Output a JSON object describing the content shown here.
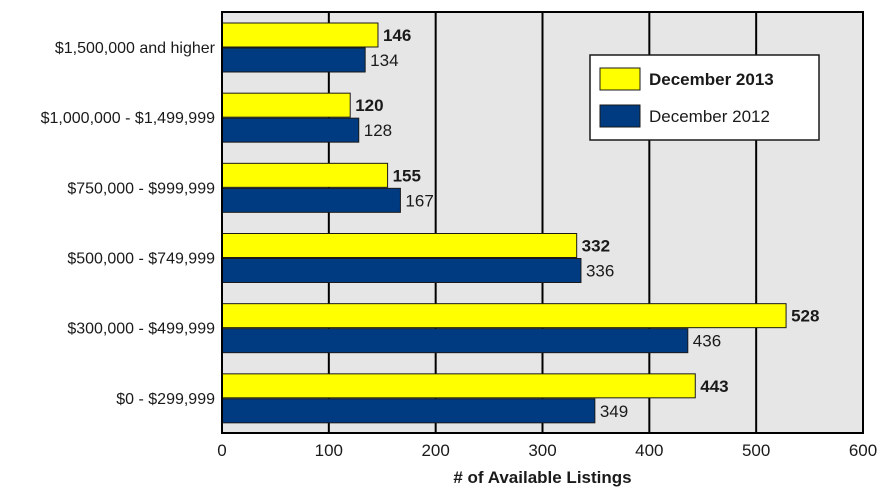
{
  "chart_data": {
    "type": "bar",
    "orientation": "horizontal",
    "categories": [
      "$1,500,000 and higher",
      "$1,000,000 - $1,499,999",
      "$750,000 - $999,999",
      "$500,000 - $749,999",
      "$300,000 - $499,999",
      "$0 - $299,999"
    ],
    "series": [
      {
        "name": "December 2013",
        "values": [
          146,
          120,
          155,
          332,
          528,
          443
        ],
        "color": "#ffff00",
        "label_bold": true
      },
      {
        "name": "December 2012",
        "values": [
          134,
          128,
          167,
          336,
          436,
          349
        ],
        "color": "#003a80",
        "label_bold": false
      }
    ],
    "value_labels": [
      [
        "146",
        "120",
        "155",
        "332",
        "528",
        "443"
      ],
      [
        "134",
        "128",
        "167",
        "336",
        "436",
        "349"
      ]
    ],
    "xlabel": "# of Available Listings",
    "xlim": [
      0,
      600
    ],
    "xticks": [
      "0",
      "100",
      "200",
      "300",
      "400",
      "500",
      "600"
    ],
    "grid": true,
    "plot_background": "#e6e6e6",
    "legend": {
      "position": "top-right",
      "entries": [
        "December 2013",
        "December 2012"
      ]
    }
  }
}
